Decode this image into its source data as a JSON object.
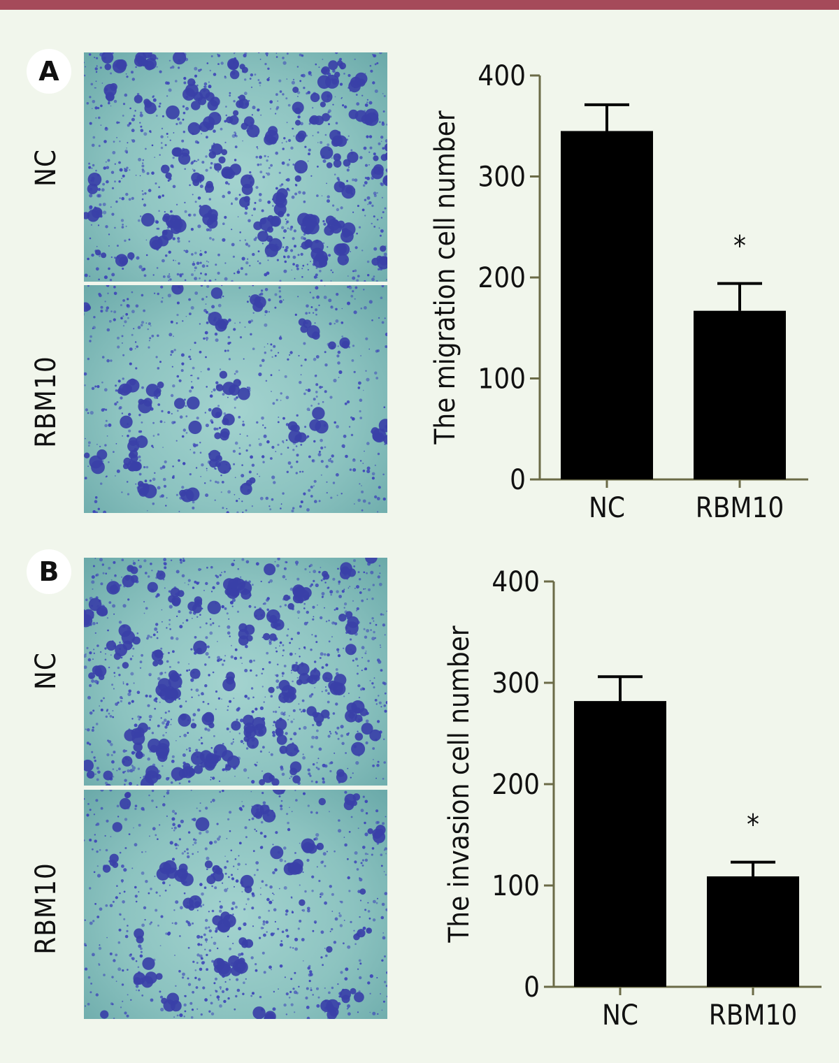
{
  "colors": {
    "topbar": "#a54a5a",
    "background": "#f1f6ec",
    "axis": "#6b6b47",
    "bar": "#000000",
    "stain": "#3f48b8"
  },
  "panels": [
    {
      "badge": "A",
      "row_labels": [
        "NC",
        "RBM10"
      ],
      "chart_data": {
        "type": "bar",
        "categories": [
          "NC",
          "RBM10"
        ],
        "values": [
          345,
          167
        ],
        "errors": [
          26,
          27
        ],
        "significance": [
          "",
          "*"
        ],
        "ylabel": "The migration cell number",
        "ylim": [
          0,
          400
        ],
        "yticks": [
          "0",
          "100",
          "200",
          "300",
          "400"
        ]
      }
    },
    {
      "badge": "B",
      "row_labels": [
        "NC",
        "RBM10"
      ],
      "chart_data": {
        "type": "bar",
        "categories": [
          "NC",
          "RBM10"
        ],
        "values": [
          282,
          109
        ],
        "errors": [
          24,
          14
        ],
        "significance": [
          "",
          "*"
        ],
        "ylabel": "The invasion cell number",
        "ylim": [
          0,
          400
        ],
        "yticks": [
          "0",
          "100",
          "200",
          "300",
          "400"
        ]
      }
    }
  ]
}
